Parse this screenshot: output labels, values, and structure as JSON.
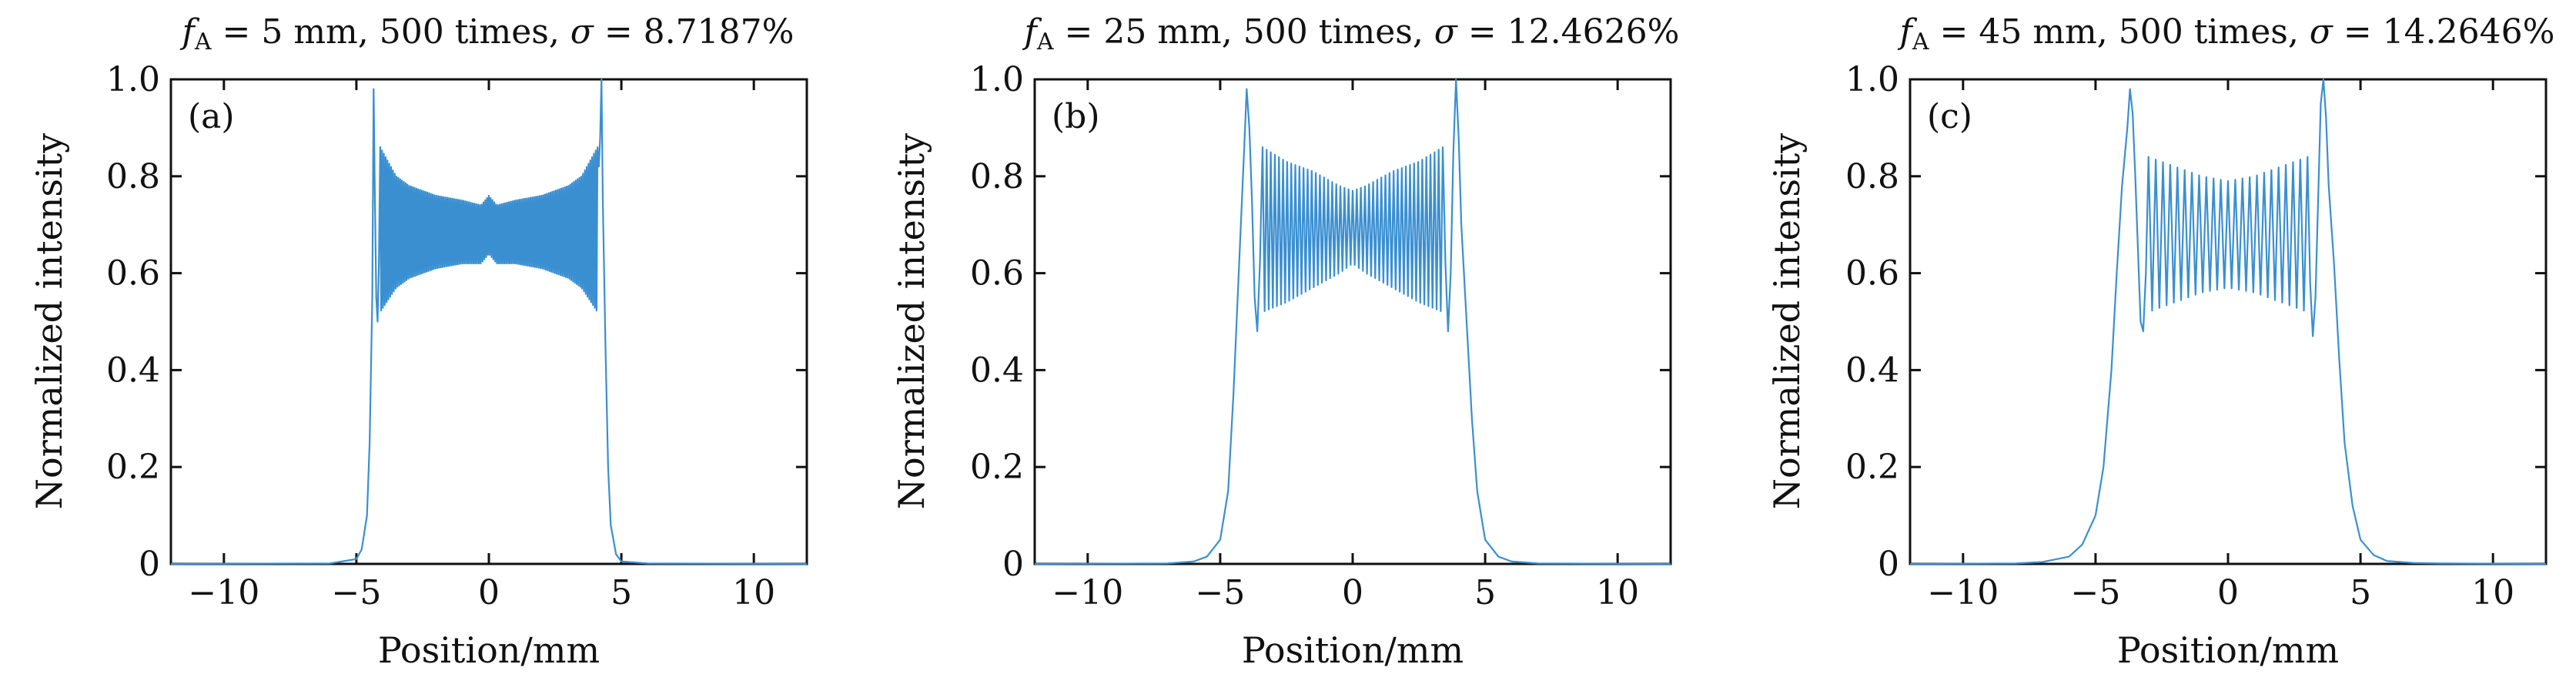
{
  "chart_data": [
    {
      "type": "line",
      "title": "f_A = 5 mm, 500 times, σ = 8.7187%",
      "title_parts": {
        "f": "f",
        "sub": "A",
        "rest": " = 5 mm, 500 times, ",
        "sigma": "σ",
        "value": " = 8.7187%"
      },
      "panel_label": "(a)",
      "xlabel": "Position/mm",
      "ylabel": "Normalized intensity",
      "xlim": [
        -12,
        12
      ],
      "ylim": [
        0,
        1
      ],
      "xticks": [
        -10,
        -5,
        0,
        5,
        10
      ],
      "xtick_labels": [
        "−10",
        "−5",
        "0",
        "5",
        "10"
      ],
      "yticks": [
        0,
        0.2,
        0.4,
        0.6,
        0.8,
        1.0
      ],
      "ytick_labels": [
        "0",
        "0.2",
        "0.4",
        "0.6",
        "0.8",
        "1.0"
      ],
      "grid": false,
      "color": "#3a8fd1",
      "series": [
        {
          "x": [
            -12,
            -6,
            -5,
            -4.8,
            -4.6,
            -4.5,
            -4.4,
            -4.35,
            -4.3,
            -4.25,
            -4.2,
            -4.15,
            -4.1,
            -4.0,
            -3.5,
            -3.0,
            -2.0,
            -1.0,
            -0.3,
            0,
            0.3,
            1.0,
            2.0,
            3.0,
            3.5,
            4.0,
            4.1,
            4.15,
            4.2,
            4.25,
            4.3,
            4.4,
            4.5,
            4.6,
            4.8,
            5,
            6,
            12
          ],
          "y": [
            0,
            0.001,
            0.01,
            0.03,
            0.1,
            0.25,
            0.55,
            0.98,
            0.75,
            0.55,
            0.5,
            0.62,
            0.52,
            0.68,
            0.67,
            0.68,
            0.67,
            0.68,
            0.69,
            0.67,
            0.69,
            0.68,
            0.67,
            0.68,
            0.67,
            0.68,
            0.55,
            0.82,
            0.88,
            1.0,
            0.75,
            0.45,
            0.2,
            0.08,
            0.02,
            0.005,
            0.001,
            0
          ],
          "envelope": {
            "x": [
              -4.1,
              -3.5,
              -3.0,
              -2.0,
              -1.0,
              -0.3,
              0,
              0.3,
              1.0,
              2.0,
              3.0,
              3.5,
              4.1
            ],
            "upper": [
              0.86,
              0.8,
              0.78,
              0.76,
              0.75,
              0.74,
              0.76,
              0.74,
              0.75,
              0.76,
              0.78,
              0.8,
              0.86
            ],
            "lower": [
              0.52,
              0.57,
              0.59,
              0.61,
              0.62,
              0.62,
              0.64,
              0.62,
              0.62,
              0.61,
              0.59,
              0.57,
              0.52
            ],
            "cycles": 120
          }
        }
      ]
    },
    {
      "type": "line",
      "title": "f_A = 25 mm, 500 times, σ = 12.4626%",
      "title_parts": {
        "f": "f",
        "sub": "A",
        "rest": " = 25 mm, 500 times, ",
        "sigma": "σ",
        "value": " = 12.4626%"
      },
      "panel_label": "(b)",
      "xlabel": "Position/mm",
      "ylabel": "Normalized intensity",
      "xlim": [
        -12,
        12
      ],
      "ylim": [
        0,
        1
      ],
      "xticks": [
        -10,
        -5,
        0,
        5,
        10
      ],
      "xtick_labels": [
        "−10",
        "−5",
        "0",
        "5",
        "10"
      ],
      "yticks": [
        0,
        0.2,
        0.4,
        0.6,
        0.8,
        1.0
      ],
      "ytick_labels": [
        "0",
        "0.2",
        "0.4",
        "0.6",
        "0.8",
        "1.0"
      ],
      "grid": false,
      "color": "#3a8fd1",
      "series": [
        {
          "x": [
            -12,
            -7,
            -6,
            -5.5,
            -5,
            -4.7,
            -4.5,
            -4.3,
            -4.1,
            -4.0,
            -3.9,
            -3.8,
            -3.7,
            -3.6,
            -3.5,
            -3.4,
            3.4,
            3.5,
            3.6,
            3.7,
            3.8,
            3.9,
            4.0,
            4.1,
            4.3,
            4.5,
            4.7,
            5,
            5.5,
            6,
            7,
            12
          ],
          "y": [
            0,
            0.001,
            0.005,
            0.015,
            0.05,
            0.15,
            0.35,
            0.6,
            0.85,
            0.98,
            0.9,
            0.75,
            0.55,
            0.48,
            0.62,
            0.7,
            0.7,
            0.62,
            0.48,
            0.6,
            0.85,
            1.0,
            0.88,
            0.7,
            0.5,
            0.3,
            0.15,
            0.05,
            0.015,
            0.005,
            0.001,
            0
          ],
          "envelope": {
            "x": [
              -3.4,
              -2.5,
              -1.5,
              -0.5,
              0,
              0.5,
              1.5,
              2.5,
              3.4
            ],
            "upper": [
              0.86,
              0.83,
              0.81,
              0.78,
              0.77,
              0.78,
              0.81,
              0.83,
              0.86
            ],
            "lower": [
              0.52,
              0.54,
              0.57,
              0.6,
              0.62,
              0.6,
              0.57,
              0.54,
              0.52
            ],
            "cycles": 44
          }
        }
      ]
    },
    {
      "type": "line",
      "title": "f_A = 45 mm, 500 times, σ = 14.2646%",
      "title_parts": {
        "f": "f",
        "sub": "A",
        "rest": " = 45 mm, 500 times, ",
        "sigma": "σ",
        "value": " = 14.2646%"
      },
      "panel_label": "(c)",
      "xlabel": "Position/mm",
      "ylabel": "Normalized intensity",
      "xlim": [
        -12,
        12
      ],
      "ylim": [
        0,
        1
      ],
      "xticks": [
        -10,
        -5,
        0,
        5,
        10
      ],
      "xtick_labels": [
        "−10",
        "−5",
        "0",
        "5",
        "10"
      ],
      "yticks": [
        0,
        0.2,
        0.4,
        0.6,
        0.8,
        1.0
      ],
      "ytick_labels": [
        "0",
        "0.2",
        "0.4",
        "0.6",
        "0.8",
        "1.0"
      ],
      "grid": false,
      "color": "#3a8fd1",
      "series": [
        {
          "x": [
            -12,
            -8,
            -7,
            -6,
            -5.5,
            -5,
            -4.7,
            -4.4,
            -4.2,
            -4.0,
            -3.8,
            -3.7,
            -3.6,
            -3.5,
            -3.4,
            -3.3,
            -3.2,
            -3.1,
            -3.0,
            3.0,
            3.1,
            3.2,
            3.3,
            3.4,
            3.5,
            3.6,
            3.7,
            3.8,
            4.0,
            4.2,
            4.4,
            4.7,
            5,
            5.5,
            6,
            7,
            8,
            12
          ],
          "y": [
            0,
            0.001,
            0.004,
            0.015,
            0.04,
            0.1,
            0.2,
            0.4,
            0.6,
            0.78,
            0.9,
            0.98,
            0.93,
            0.8,
            0.65,
            0.5,
            0.48,
            0.6,
            0.7,
            0.7,
            0.58,
            0.47,
            0.55,
            0.75,
            0.95,
            1.0,
            0.92,
            0.78,
            0.62,
            0.42,
            0.25,
            0.12,
            0.05,
            0.018,
            0.006,
            0.002,
            0.001,
            0
          ],
          "envelope": {
            "x": [
              -3.0,
              -2.0,
              -1.0,
              0,
              1.0,
              2.0,
              3.0
            ],
            "upper": [
              0.84,
              0.82,
              0.8,
              0.79,
              0.8,
              0.82,
              0.84
            ],
            "lower": [
              0.52,
              0.54,
              0.56,
              0.57,
              0.56,
              0.54,
              0.52
            ],
            "cycles": 22
          }
        }
      ]
    }
  ]
}
